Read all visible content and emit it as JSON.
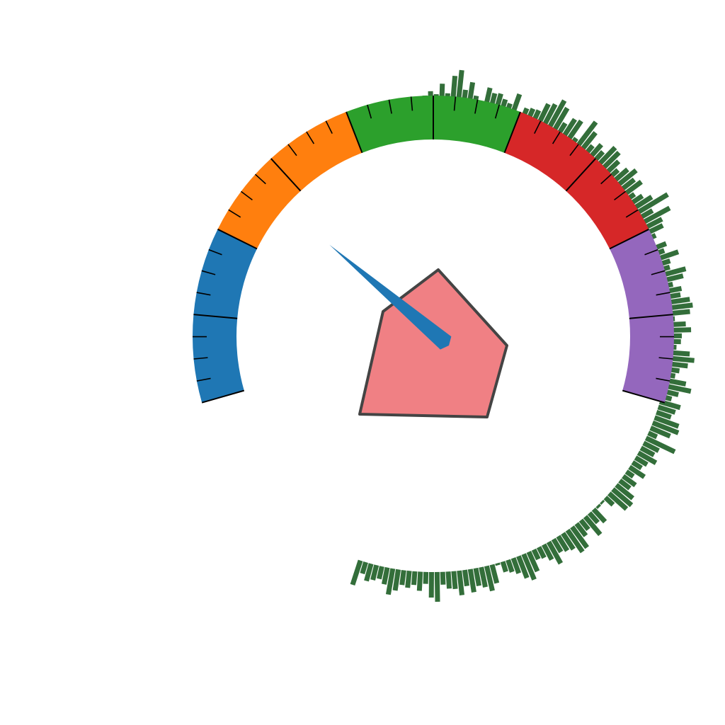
{
  "chart_data": {
    "type": "gauge",
    "gauge_range": [
      0,
      100
    ],
    "band_edges": [
      0,
      20,
      40,
      60,
      80,
      100
    ],
    "band_colors": [
      "#1f77b4",
      "#ff7f0e",
      "#2ca02c",
      "#d62728",
      "#9467bd"
    ],
    "needle_value": 26.5,
    "needle_color": "#1f77b4",
    "pentagon_fill": "#f08084",
    "pentagon_stroke": "#444444",
    "radial_bar_color": "#336e3a",
    "radial_bars": [
      0.12,
      0.22,
      0.15,
      0.4,
      0.18,
      0.6,
      0.75,
      0.3,
      0.5,
      0.2,
      0.08,
      0.45,
      0.35,
      0.38,
      0.28,
      0.22,
      0.5,
      0.05,
      0.25,
      0.3,
      0.32,
      0.55,
      0.62,
      0.8,
      0.68,
      0.35,
      0.55,
      0.6,
      0.2,
      0.78,
      0.58,
      0.3,
      0.45,
      0.35,
      0.62,
      0.6,
      0.45,
      0.3,
      0.48,
      0.62,
      0.45,
      0.55,
      0.25,
      0.38,
      0.55,
      0.9,
      0.4,
      0.78,
      0.5,
      0.45,
      0.2,
      0.05,
      0.35,
      0.25,
      0.55,
      0.3,
      0.25,
      0.6,
      0.5,
      0.22,
      0.4,
      0.35,
      0.55,
      0.6,
      0.52,
      0.15,
      0.4,
      0.52,
      0.3,
      0.28,
      0.18,
      0.5,
      0.62,
      0.48,
      0.3,
      0.22,
      0.5,
      0.65,
      0.38,
      0.25,
      0.5,
      0.42,
      0.36,
      0.6,
      0.65,
      0.5,
      0.22,
      0.75,
      0.4,
      0.35,
      0.48,
      0.32,
      0.25,
      0.42,
      0.2,
      0.36,
      0.3,
      0.5,
      0.58,
      0.55,
      0.25,
      0.05,
      0.06,
      0.4,
      0.3,
      0.55,
      0.28,
      0.36,
      0.6,
      0.62,
      0.45,
      0.4,
      0.35,
      0.58,
      0.4,
      0.28,
      0.25,
      0.5,
      0.65,
      0.55,
      0.38,
      0.3,
      0.25,
      0.05,
      0.45,
      0.6,
      0.48,
      0.42,
      0.55,
      0.38,
      0.58,
      0.42,
      0.4,
      0.3,
      0.7,
      0.6,
      0.28,
      0.45,
      0.32,
      0.4,
      0.35,
      0.5,
      0.62,
      0.4,
      0.3,
      0.36,
      0.42,
      0.28,
      0.6
    ]
  }
}
